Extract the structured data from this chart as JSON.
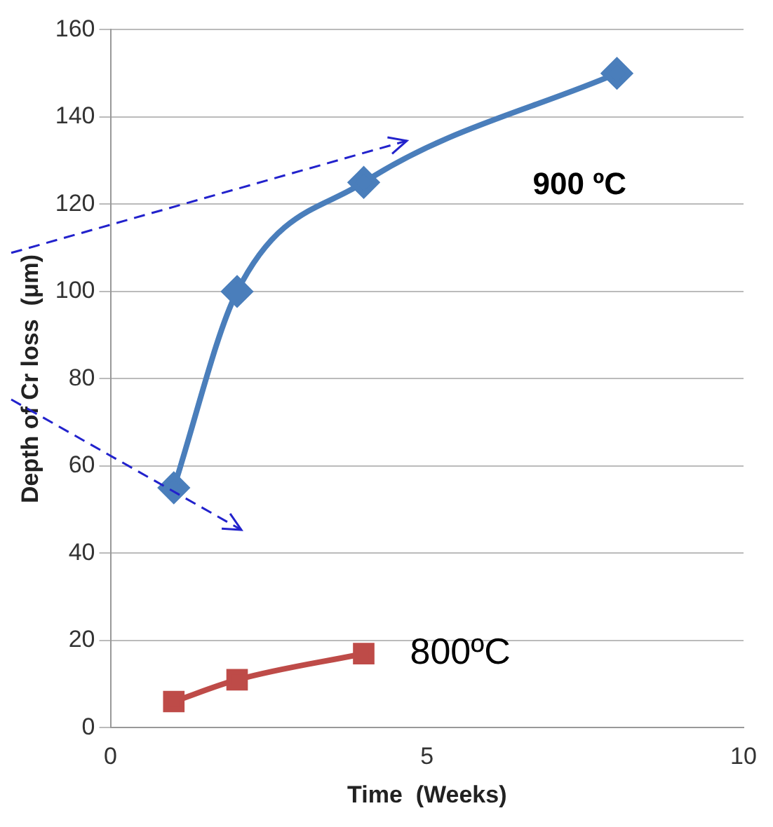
{
  "chart_data": {
    "type": "line",
    "xlabel": "Time  (Weeks)",
    "ylabel": "Depth of Cr loss  (μm)",
    "xlim": [
      0,
      10
    ],
    "xticks": [
      0,
      5,
      10
    ],
    "ylim": [
      0,
      160
    ],
    "yticks": [
      0,
      20,
      40,
      60,
      80,
      100,
      120,
      140,
      160
    ],
    "grid": "y",
    "legend": false,
    "series": [
      {
        "name": "900 ºC",
        "color": "#4a7ebb",
        "marker": "diamond",
        "x": [
          1,
          2,
          4,
          8
        ],
        "values": [
          55,
          100,
          125,
          150
        ]
      },
      {
        "name": "800ºC",
        "color": "#be4b48",
        "marker": "square",
        "x": [
          1,
          2,
          4
        ],
        "values": [
          6,
          11,
          17
        ]
      }
    ]
  }
}
